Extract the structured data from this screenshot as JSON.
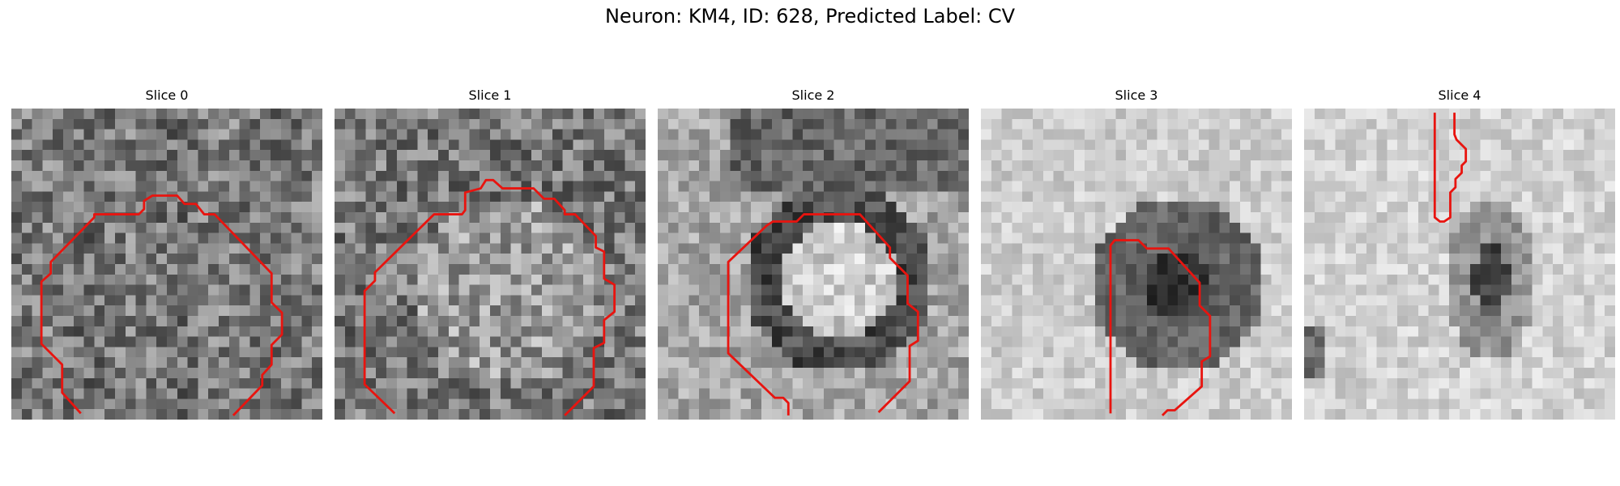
{
  "figure": {
    "title": "Neuron: KM4, ID: 628, Predicted Label: CV",
    "contour_color": "#e8140f",
    "colormap": "grayscale",
    "slices": [
      {
        "label": "Slice 0",
        "base_tone": 120,
        "style": "uniform"
      },
      {
        "label": "Slice 1",
        "base_tone": 130,
        "style": "bright-cell"
      },
      {
        "label": "Slice 2",
        "base_tone": 165,
        "style": "dark-ring"
      },
      {
        "label": "Slice 3",
        "base_tone": 205,
        "style": "dark-blob"
      },
      {
        "label": "Slice 4",
        "base_tone": 210,
        "style": "faint-dark-spot"
      }
    ]
  }
}
